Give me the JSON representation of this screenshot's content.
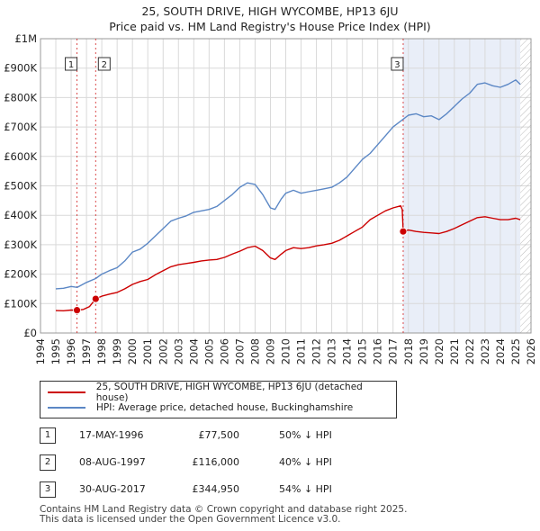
{
  "title_line1": "25, SOUTH DRIVE, HIGH WYCOMBE, HP13 6JU",
  "title_line2": "Price paid vs. HM Land Registry's House Price Index (HPI)",
  "legend": {
    "property": "25, SOUTH DRIVE, HIGH WYCOMBE, HP13 6JU (detached house)",
    "hpi": "HPI: Average price, detached house, Buckinghamshire"
  },
  "sales": [
    {
      "num": "1",
      "date": "17-MAY-1996",
      "price": "£77,500",
      "hpi": "50% ↓ HPI"
    },
    {
      "num": "2",
      "date": "08-AUG-1997",
      "price": "£116,000",
      "hpi": "40% ↓ HPI"
    },
    {
      "num": "3",
      "date": "30-AUG-2017",
      "price": "£344,950",
      "hpi": "54% ↓ HPI"
    }
  ],
  "footer_line1": "Contains HM Land Registry data © Crown copyright and database right 2025.",
  "footer_line2": "This data is licensed under the Open Government Licence v3.0.",
  "colors": {
    "property": "#cc0000",
    "hpi": "#5b87c5",
    "shade": "#e9eef8",
    "grid": "#d9d9d9"
  },
  "chart_data": {
    "type": "line",
    "xlim": [
      1994,
      2026
    ],
    "ylim": [
      0,
      1000000
    ],
    "yticks": [
      0,
      100000,
      200000,
      300000,
      400000,
      500000,
      600000,
      700000,
      800000,
      900000,
      1000000
    ],
    "ytick_labels": [
      "£0",
      "£100K",
      "£200K",
      "£300K",
      "£400K",
      "£500K",
      "£600K",
      "£700K",
      "£800K",
      "£900K",
      "£1M"
    ],
    "xticks": [
      1994,
      1995,
      1996,
      1997,
      1998,
      1999,
      2000,
      2001,
      2002,
      2003,
      2004,
      2005,
      2006,
      2007,
      2008,
      2009,
      2010,
      2011,
      2012,
      2013,
      2014,
      2015,
      2016,
      2017,
      2018,
      2019,
      2020,
      2021,
      2022,
      2023,
      2024,
      2025,
      2026
    ],
    "data_range": [
      1995.0,
      2025.3
    ],
    "markers": [
      {
        "label": "1",
        "x": 1996.38,
        "y": 77500
      },
      {
        "label": "2",
        "x": 1997.6,
        "y": 116000
      },
      {
        "label": "3",
        "x": 2017.66,
        "y": 344950
      }
    ],
    "series": [
      {
        "name": "HPI: Average price, detached house, Buckinghamshire",
        "x": [
          1995.0,
          1995.5,
          1996.0,
          1996.4,
          1997.0,
          1997.6,
          1998.0,
          1998.5,
          1999.0,
          1999.5,
          2000.0,
          2000.5,
          2001.0,
          2001.5,
          2002.0,
          2002.5,
          2003.0,
          2003.5,
          2004.0,
          2004.5,
          2005.0,
          2005.5,
          2006.0,
          2006.5,
          2007.0,
          2007.5,
          2008.0,
          2008.5,
          2009.0,
          2009.3,
          2009.7,
          2010.0,
          2010.5,
          2011.0,
          2011.5,
          2012.0,
          2012.5,
          2013.0,
          2013.5,
          2014.0,
          2014.5,
          2015.0,
          2015.5,
          2016.0,
          2016.5,
          2017.0,
          2017.5,
          2018.0,
          2018.5,
          2019.0,
          2019.5,
          2020.0,
          2020.5,
          2021.0,
          2021.5,
          2022.0,
          2022.5,
          2023.0,
          2023.5,
          2024.0,
          2024.5,
          2025.0,
          2025.3
        ],
        "values": [
          150000,
          152000,
          158000,
          155000,
          172000,
          185000,
          200000,
          212000,
          222000,
          245000,
          275000,
          285000,
          305000,
          330000,
          355000,
          380000,
          390000,
          398000,
          410000,
          415000,
          420000,
          430000,
          450000,
          470000,
          495000,
          510000,
          505000,
          470000,
          425000,
          420000,
          455000,
          475000,
          485000,
          475000,
          480000,
          485000,
          490000,
          495000,
          510000,
          530000,
          560000,
          590000,
          610000,
          640000,
          670000,
          700000,
          720000,
          740000,
          745000,
          735000,
          738000,
          725000,
          745000,
          770000,
          795000,
          815000,
          845000,
          850000,
          840000,
          835000,
          845000,
          860000,
          845000
        ]
      },
      {
        "name": "25, SOUTH DRIVE, HIGH WYCOMBE, HP13 6JU (detached house)",
        "x": [
          1995.0,
          1995.5,
          1996.0,
          1996.38,
          1996.8,
          1997.2,
          1997.6,
          1998.0,
          1998.5,
          1999.0,
          1999.5,
          2000.0,
          2000.5,
          2001.0,
          2001.5,
          2002.0,
          2002.5,
          2003.0,
          2003.5,
          2004.0,
          2004.5,
          2005.0,
          2005.5,
          2006.0,
          2006.5,
          2007.0,
          2007.5,
          2008.0,
          2008.5,
          2009.0,
          2009.3,
          2009.7,
          2010.0,
          2010.5,
          2011.0,
          2011.5,
          2012.0,
          2012.5,
          2013.0,
          2013.5,
          2014.0,
          2014.5,
          2015.0,
          2015.5,
          2016.0,
          2016.5,
          2017.0,
          2017.5,
          2017.6,
          2017.66,
          2018.0,
          2018.5,
          2019.0,
          2019.5,
          2020.0,
          2020.5,
          2021.0,
          2021.5,
          2022.0,
          2022.5,
          2023.0,
          2023.5,
          2024.0,
          2024.5,
          2025.0,
          2025.3
        ],
        "values": [
          76000,
          75500,
          78000,
          77500,
          80000,
          90000,
          116000,
          125000,
          132000,
          138000,
          150000,
          165000,
          175000,
          182000,
          198000,
          212000,
          225000,
          232000,
          236000,
          240000,
          245000,
          248000,
          250000,
          257000,
          268000,
          278000,
          290000,
          295000,
          280000,
          255000,
          250000,
          268000,
          280000,
          290000,
          287000,
          290000,
          296000,
          300000,
          305000,
          315000,
          330000,
          345000,
          360000,
          385000,
          400000,
          415000,
          425000,
          432000,
          420000,
          344950,
          350000,
          345000,
          342000,
          340000,
          338000,
          345000,
          355000,
          368000,
          380000,
          392000,
          395000,
          390000,
          385000,
          385000,
          390000,
          385000
        ]
      }
    ]
  }
}
